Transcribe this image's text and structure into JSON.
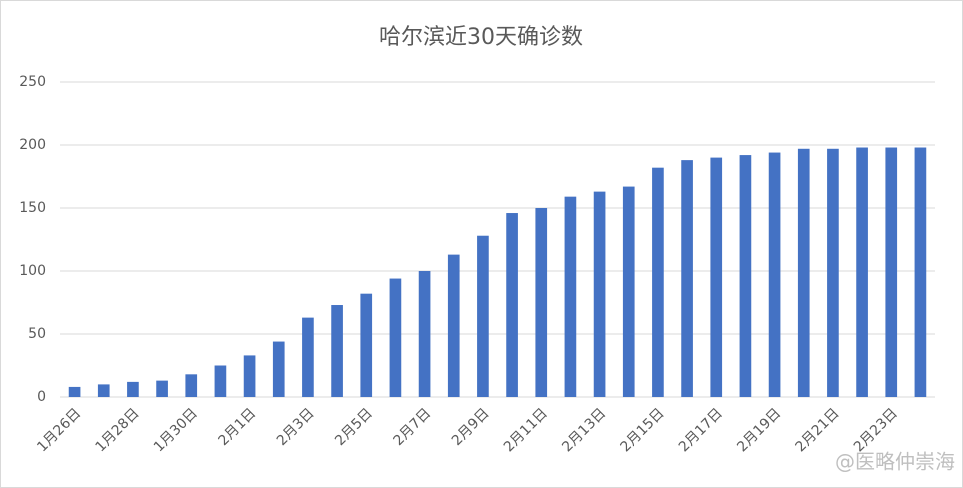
{
  "chart_data": {
    "type": "bar",
    "title": "哈尔滨近30天确诊数",
    "categories": [
      "1月26日",
      null,
      "1月28日",
      null,
      "1月30日",
      null,
      "2月1日",
      null,
      "2月3日",
      null,
      "2月5日",
      null,
      "2月7日",
      null,
      "2月9日",
      null,
      "2月11日",
      null,
      "2月13日",
      null,
      "2月15日",
      null,
      "2月17日",
      null,
      "2月19日",
      null,
      "2月21日",
      null,
      "2月23日",
      null
    ],
    "values": [
      8,
      10,
      12,
      13,
      18,
      25,
      33,
      44,
      63,
      73,
      82,
      94,
      100,
      113,
      128,
      146,
      150,
      159,
      163,
      167,
      182,
      188,
      190,
      192,
      194,
      197,
      197,
      198,
      198,
      198
    ],
    "color": "#4472c4",
    "ylim": [
      0,
      250
    ],
    "yticks": [
      0,
      50,
      100,
      150,
      200,
      250
    ],
    "grid": true,
    "watermark": "@医略仲崇海"
  }
}
